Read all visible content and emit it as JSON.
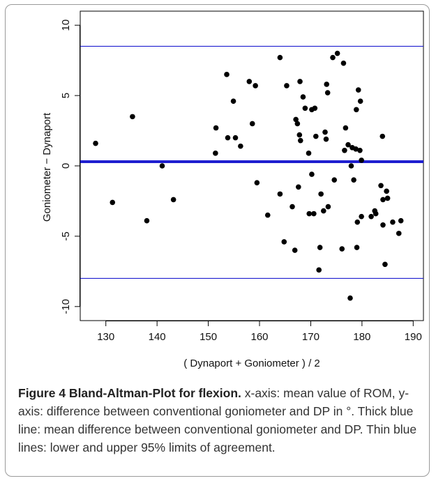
{
  "chart_data": {
    "type": "scatter",
    "xlabel": "( Dynaport + Goniometer ) / 2",
    "ylabel": "Goniometer − Dynaport",
    "xlim": [
      125,
      192
    ],
    "ylim": [
      -11,
      11
    ],
    "xticks": [
      130,
      140,
      150,
      160,
      170,
      180,
      190
    ],
    "yticks": [
      -10,
      -5,
      0,
      5,
      10
    ],
    "grid": false,
    "mean_difference": 0.3,
    "upper_limit": 8.5,
    "lower_limit": -8.0,
    "line_color": "#1f1fd0",
    "point_color": "#000000",
    "points": [
      [
        128.0,
        1.6
      ],
      [
        131.3,
        -2.6
      ],
      [
        135.2,
        3.5
      ],
      [
        138.0,
        -3.9
      ],
      [
        141.0,
        0.0
      ],
      [
        143.2,
        -2.4
      ],
      [
        151.4,
        0.9
      ],
      [
        151.5,
        2.7
      ],
      [
        153.6,
        6.5
      ],
      [
        153.8,
        2.0
      ],
      [
        154.9,
        4.6
      ],
      [
        155.3,
        2.0
      ],
      [
        156.3,
        1.4
      ],
      [
        158.0,
        6.0
      ],
      [
        158.6,
        3.0
      ],
      [
        159.2,
        5.7
      ],
      [
        159.5,
        -1.2
      ],
      [
        161.6,
        -3.5
      ],
      [
        164.0,
        7.7
      ],
      [
        164.0,
        -2.0
      ],
      [
        164.8,
        -5.4
      ],
      [
        165.3,
        5.7
      ],
      [
        166.4,
        -2.9
      ],
      [
        166.9,
        -6.0
      ],
      [
        167.1,
        3.3
      ],
      [
        167.4,
        3.0
      ],
      [
        167.6,
        -1.5
      ],
      [
        167.8,
        2.2
      ],
      [
        167.9,
        6.0
      ],
      [
        168.0,
        1.8
      ],
      [
        168.5,
        4.9
      ],
      [
        168.9,
        4.1
      ],
      [
        169.6,
        0.9
      ],
      [
        169.7,
        -3.4
      ],
      [
        170.2,
        4.0
      ],
      [
        170.2,
        -0.6
      ],
      [
        170.8,
        4.1
      ],
      [
        170.6,
        -3.4
      ],
      [
        171.0,
        2.1
      ],
      [
        171.6,
        -7.4
      ],
      [
        171.8,
        -5.8
      ],
      [
        172.0,
        -2.0
      ],
      [
        172.5,
        -3.2
      ],
      [
        172.8,
        2.4
      ],
      [
        173.0,
        1.9
      ],
      [
        173.1,
        5.8
      ],
      [
        173.3,
        5.2
      ],
      [
        173.4,
        -2.9
      ],
      [
        174.3,
        7.7
      ],
      [
        174.6,
        -1.0
      ],
      [
        175.2,
        8.0
      ],
      [
        176.1,
        -5.9
      ],
      [
        176.4,
        7.3
      ],
      [
        176.6,
        1.1
      ],
      [
        176.8,
        2.7
      ],
      [
        177.3,
        1.5
      ],
      [
        177.7,
        -9.4
      ],
      [
        177.9,
        0.0
      ],
      [
        178.1,
        1.3
      ],
      [
        178.4,
        -1.0
      ],
      [
        178.8,
        1.2
      ],
      [
        178.9,
        4.0
      ],
      [
        179.0,
        -5.8
      ],
      [
        179.1,
        -4.0
      ],
      [
        179.3,
        5.4
      ],
      [
        179.6,
        1.1
      ],
      [
        179.7,
        4.6
      ],
      [
        179.9,
        -3.6
      ],
      [
        179.9,
        0.4
      ],
      [
        181.8,
        -3.6
      ],
      [
        182.5,
        -3.2
      ],
      [
        182.7,
        -3.4
      ],
      [
        183.7,
        -1.4
      ],
      [
        184.0,
        2.1
      ],
      [
        184.1,
        -4.2
      ],
      [
        184.1,
        -2.4
      ],
      [
        184.5,
        -7.0
      ],
      [
        184.8,
        -1.8
      ],
      [
        185.0,
        -2.3
      ],
      [
        186.0,
        -4.0
      ],
      [
        187.2,
        -4.8
      ],
      [
        187.6,
        -3.9
      ]
    ]
  },
  "caption": {
    "label": "Figure 4 Bland-Altman-Plot for flexion.",
    "text": " x-axis: mean value of ROM, y-axis: difference between conventional goniometer and DP in °. Thick blue line: mean difference between conventional goniometer and DP. Thin blue lines: lower and upper 95% limits of agreement."
  }
}
